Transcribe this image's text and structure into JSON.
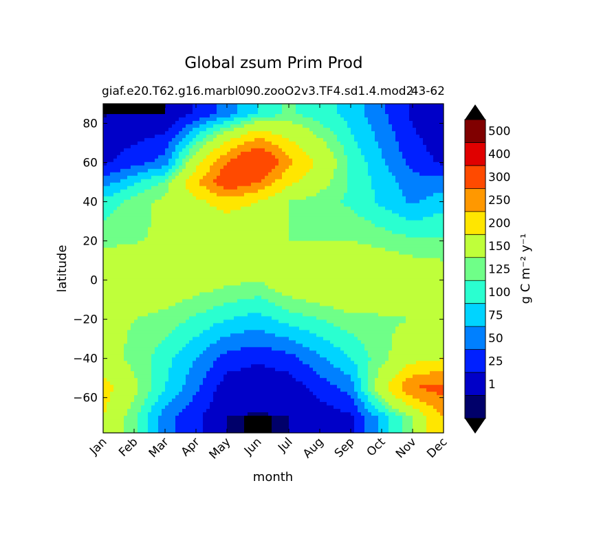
{
  "chart_data": {
    "type": "heatmap",
    "title": "Global zsum Prim Prod",
    "subtitle_left": "giaf.e20.T62.g16.marbl090.zooO2v3.TF4.sd1.4.mod2",
    "subtitle_right": "43-62",
    "xlabel": "month",
    "ylabel": "latitude",
    "x_ticks": [
      "Jan",
      "Feb",
      "Mar",
      "Apr",
      "May",
      "Jun",
      "Jul",
      "Aug",
      "Sep",
      "Oct",
      "Nov",
      "Dec"
    ],
    "y_ticks": [
      {
        "value": 80,
        "label": "80"
      },
      {
        "value": 60,
        "label": "60"
      },
      {
        "value": 40,
        "label": "40"
      },
      {
        "value": 20,
        "label": "20"
      },
      {
        "value": 0,
        "label": "0"
      },
      {
        "value": -20,
        "label": "−20"
      },
      {
        "value": -40,
        "label": "−40"
      },
      {
        "value": -60,
        "label": "−60"
      }
    ],
    "ylim": [
      -78,
      90
    ],
    "xlim": [
      1,
      12
    ],
    "colorbar": {
      "label": "g C m⁻² y⁻¹",
      "extend": "both",
      "under_color": "#000000",
      "over_color": "#000000",
      "levels": [
        {
          "label": "",
          "color": "#00006a"
        },
        {
          "label": "1",
          "color": "#0000c8"
        },
        {
          "label": "25",
          "color": "#0020ff"
        },
        {
          "label": "50",
          "color": "#0080ff"
        },
        {
          "label": "75",
          "color": "#00d4ff"
        },
        {
          "label": "100",
          "color": "#2affd0"
        },
        {
          "label": "125",
          "color": "#6fff88"
        },
        {
          "label": "150",
          "color": "#bfff3a"
        },
        {
          "label": "200",
          "color": "#ffe600"
        },
        {
          "label": "250",
          "color": "#ff9800"
        },
        {
          "label": "300",
          "color": "#ff4a00"
        },
        {
          "label": "400",
          "color": "#e00000"
        },
        {
          "label": "500",
          "color": "#800000"
        }
      ]
    },
    "field_samples": {
      "description_units": "g C m-2 y-1",
      "months": [
        1,
        3,
        5,
        6,
        7,
        9,
        11,
        12
      ],
      "rows": [
        {
          "lat": 85,
          "values": [
            0,
            0,
            60,
            100,
            130,
            90,
            20,
            0
          ]
        },
        {
          "lat": 60,
          "values": [
            20,
            60,
            300,
            400,
            260,
            120,
            40,
            20
          ]
        },
        {
          "lat": 50,
          "values": [
            60,
            130,
            350,
            300,
            210,
            120,
            60,
            60
          ]
        },
        {
          "lat": 40,
          "values": [
            110,
            160,
            220,
            200,
            150,
            120,
            70,
            90
          ]
        },
        {
          "lat": 20,
          "values": [
            140,
            155,
            150,
            150,
            150,
            150,
            130,
            130
          ]
        },
        {
          "lat": 0,
          "values": [
            200,
            180,
            160,
            150,
            180,
            200,
            180,
            170
          ]
        },
        {
          "lat": -20,
          "values": [
            160,
            140,
            100,
            90,
            110,
            140,
            150,
            150
          ]
        },
        {
          "lat": -40,
          "values": [
            170,
            110,
            40,
            30,
            40,
            100,
            180,
            200
          ]
        },
        {
          "lat": -55,
          "values": [
            220,
            100,
            10,
            5,
            10,
            60,
            300,
            320
          ]
        },
        {
          "lat": -70,
          "values": [
            200,
            60,
            1,
            0,
            1,
            20,
            150,
            250
          ]
        }
      ]
    }
  }
}
